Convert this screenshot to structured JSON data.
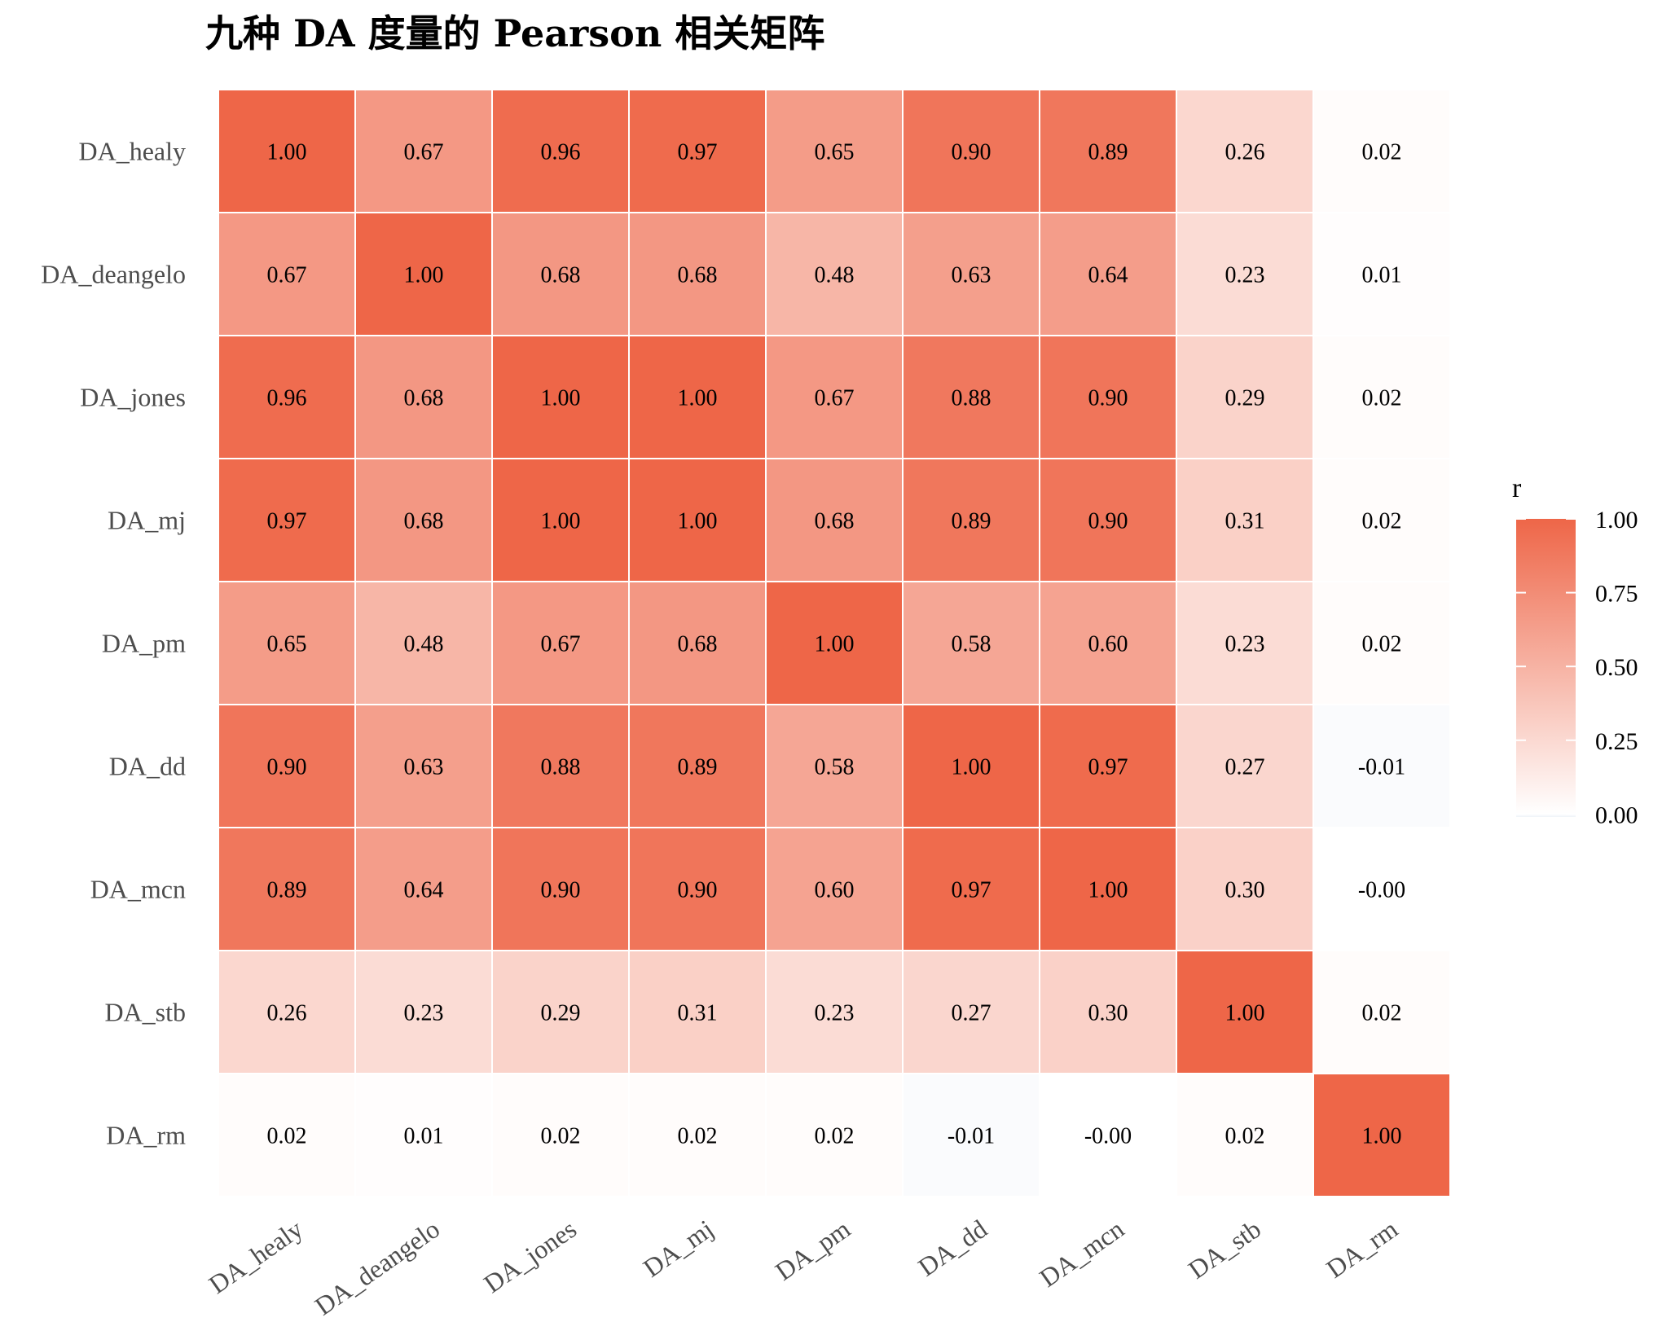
{
  "chart_data": {
    "type": "heatmap",
    "title": "九种 DA 度量的 Pearson 相关矩阵",
    "row_labels": [
      "DA_healy",
      "DA_deangelo",
      "DA_jones",
      "DA_mj",
      "DA_pm",
      "DA_dd",
      "DA_mcn",
      "DA_stb",
      "DA_rm"
    ],
    "col_labels": [
      "DA_healy",
      "DA_deangelo",
      "DA_jones",
      "DA_mj",
      "DA_pm",
      "DA_dd",
      "DA_mcn",
      "DA_stb",
      "DA_rm"
    ],
    "values": [
      [
        1.0,
        0.67,
        0.96,
        0.97,
        0.65,
        0.9,
        0.89,
        0.26,
        0.02
      ],
      [
        0.67,
        1.0,
        0.68,
        0.68,
        0.48,
        0.63,
        0.64,
        0.23,
        0.01
      ],
      [
        0.96,
        0.68,
        1.0,
        1.0,
        0.67,
        0.88,
        0.9,
        0.29,
        0.02
      ],
      [
        0.97,
        0.68,
        1.0,
        1.0,
        0.68,
        0.89,
        0.9,
        0.31,
        0.02
      ],
      [
        0.65,
        0.48,
        0.67,
        0.68,
        1.0,
        0.58,
        0.6,
        0.23,
        0.02
      ],
      [
        0.9,
        0.63,
        0.88,
        0.89,
        0.58,
        1.0,
        0.97,
        0.27,
        -0.01
      ],
      [
        0.89,
        0.64,
        0.9,
        0.9,
        0.6,
        0.97,
        1.0,
        0.3,
        -0.0
      ],
      [
        0.26,
        0.23,
        0.29,
        0.31,
        0.23,
        0.27,
        0.3,
        1.0,
        0.02
      ],
      [
        0.02,
        0.01,
        0.02,
        0.02,
        0.02,
        -0.01,
        -0.0,
        0.02,
        1.0
      ]
    ],
    "value_labels": [
      [
        "1.00",
        "0.67",
        "0.96",
        "0.97",
        "0.65",
        "0.90",
        "0.89",
        "0.26",
        "0.02"
      ],
      [
        "0.67",
        "1.00",
        "0.68",
        "0.68",
        "0.48",
        "0.63",
        "0.64",
        "0.23",
        "0.01"
      ],
      [
        "0.96",
        "0.68",
        "1.00",
        "1.00",
        "0.67",
        "0.88",
        "0.90",
        "0.29",
        "0.02"
      ],
      [
        "0.97",
        "0.68",
        "1.00",
        "1.00",
        "0.68",
        "0.89",
        "0.90",
        "0.31",
        "0.02"
      ],
      [
        "0.65",
        "0.48",
        "0.67",
        "0.68",
        "1.00",
        "0.58",
        "0.60",
        "0.23",
        "0.02"
      ],
      [
        "0.90",
        "0.63",
        "0.88",
        "0.89",
        "0.58",
        "1.00",
        "0.97",
        "0.27",
        "-0.01"
      ],
      [
        "0.89",
        "0.64",
        "0.90",
        "0.90",
        "0.60",
        "0.97",
        "1.00",
        "0.30",
        "-0.00"
      ],
      [
        "0.26",
        "0.23",
        "0.29",
        "0.31",
        "0.23",
        "0.27",
        "0.30",
        "1.00",
        "0.02"
      ],
      [
        "0.02",
        "0.01",
        "0.02",
        "0.02",
        "0.02",
        "-0.01",
        "-0.00",
        "0.02",
        "1.00"
      ]
    ],
    "legend": {
      "title": "r",
      "ticks": [
        1.0,
        0.75,
        0.5,
        0.25,
        0.0
      ],
      "tick_labels": [
        "1.00",
        "0.75",
        "0.50",
        "0.25",
        "0.00"
      ],
      "range": [
        -0.01,
        1.0
      ],
      "placement": "right"
    },
    "colors": {
      "high": "#ee6648",
      "mid": "#ffffff",
      "low": "#eef3f8",
      "cell_border": "#ffffff"
    }
  }
}
